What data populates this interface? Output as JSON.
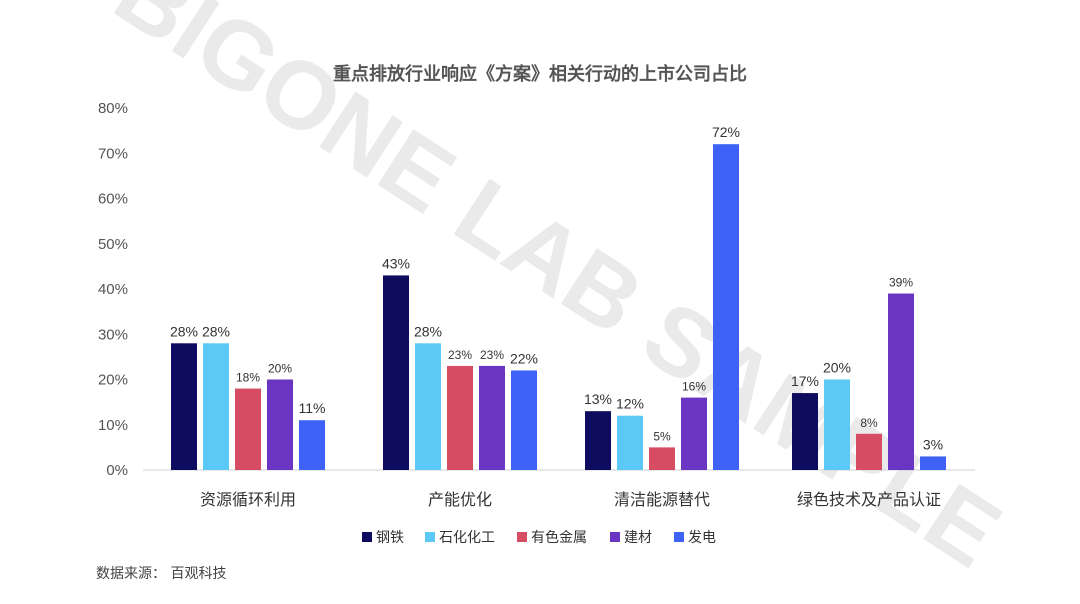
{
  "chart_data": {
    "type": "bar",
    "title": "重点排放行业响应《方案》相关行动的上市公司占比",
    "categories": [
      "资源循环利用",
      "产能优化",
      "清洁能源替代",
      "绿色技术及产品认证"
    ],
    "series": [
      {
        "name": "钢铁",
        "color": "#0d0c5e",
        "values": [
          28,
          43,
          13,
          17
        ]
      },
      {
        "name": "石化化工",
        "color": "#5bc8f5",
        "values": [
          28,
          28,
          12,
          20
        ]
      },
      {
        "name": "有色金属",
        "color": "#d64c63",
        "values": [
          18,
          23,
          5,
          8
        ]
      },
      {
        "name": "建材",
        "color": "#6a35c2",
        "values": [
          20,
          23,
          16,
          39
        ]
      },
      {
        "name": "发电",
        "color": "#3d62f5",
        "values": [
          11,
          22,
          72,
          3
        ]
      }
    ],
    "data_labels": [
      [
        "28%",
        "28%",
        "18%",
        "20%",
        "11%"
      ],
      [
        "43%",
        "28%",
        "23%",
        "23%",
        "22%"
      ],
      [
        "13%",
        "12%",
        "5%",
        "16%",
        "72%"
      ],
      [
        "17%",
        "20%",
        "8%",
        "39%",
        "3%"
      ]
    ],
    "y_ticks": [
      "0%",
      "10%",
      "20%",
      "30%",
      "40%",
      "50%",
      "60%",
      "70%",
      "80%"
    ],
    "ylim": [
      0,
      80
    ],
    "xlabel": "",
    "ylabel": "",
    "grid": false,
    "legend_position": "bottom"
  },
  "watermark": "BIGONE LAB SAMPLE",
  "source": "数据来源：  百观科技"
}
